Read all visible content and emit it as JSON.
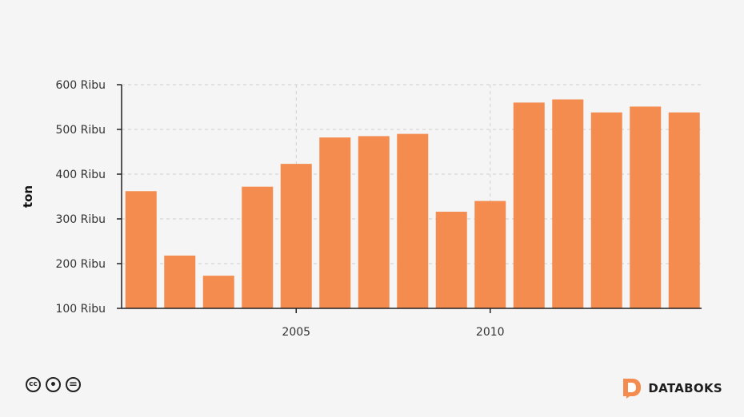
{
  "chart_data": {
    "type": "bar",
    "x": [
      2001,
      2002,
      2003,
      2004,
      2005,
      2006,
      2007,
      2008,
      2009,
      2010,
      2011,
      2012,
      2013,
      2014,
      2015
    ],
    "values": [
      362000,
      218000,
      173000,
      372000,
      423000,
      482000,
      485000,
      490000,
      316000,
      340000,
      560000,
      567000,
      538000,
      551000,
      538000
    ],
    "ylabel": "ton",
    "ylim": [
      100000,
      600000
    ],
    "yticks": [
      100000,
      200000,
      300000,
      400000,
      500000,
      600000
    ],
    "ytick_labels": [
      "100 Ribu",
      "200 Ribu",
      "300 Ribu",
      "400 Ribu",
      "500 Ribu",
      "600 Ribu"
    ],
    "xticks": [
      2005,
      2010
    ],
    "xtick_labels": [
      "2005",
      "2010"
    ],
    "grid": true,
    "bar_color": "#f48c4f"
  },
  "footer": {
    "license_icons": [
      "cc-icon",
      "by-icon",
      "nd-icon"
    ],
    "license_glyphs": [
      "cc",
      "•",
      "="
    ],
    "brand_name": "DATABOKS",
    "brand_color": "#f48c4f"
  }
}
